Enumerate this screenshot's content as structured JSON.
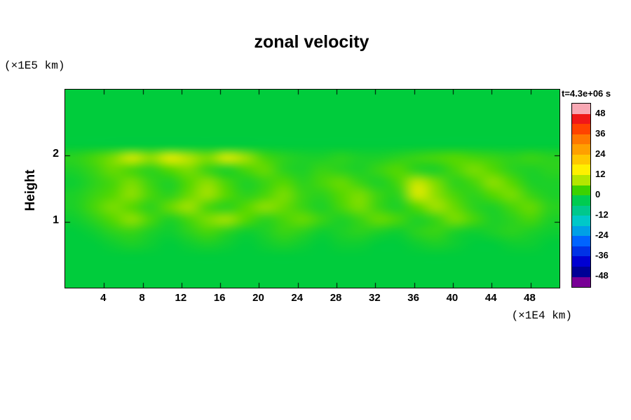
{
  "title": "zonal velocity",
  "axes": {
    "y_label": "Height",
    "y_unit": "(×1E5 km)",
    "x_unit": "(×1E4 km)"
  },
  "colorbar": {
    "title": "t=4.3e+06 s",
    "tick_labels": [
      "48",
      "36",
      "24",
      "12",
      "0",
      "-12",
      "-24",
      "-36",
      "-48"
    ],
    "segments_top_to_bottom": [
      "#f8a8b4",
      "#f01818",
      "#ff4300",
      "#ff7800",
      "#ffa000",
      "#ffc800",
      "#fff000",
      "#b4e600",
      "#3cd200",
      "#00cc50",
      "#00c88c",
      "#00c8c8",
      "#00a0e6",
      "#0064ff",
      "#0032e6",
      "#0000d2",
      "#000096",
      "#780096"
    ]
  },
  "chart_data": {
    "type": "heatmap",
    "title": "zonal velocity",
    "xlabel": "(×1E4 km)",
    "ylabel": "Height (×1E5 km)",
    "time_label": "t=4.3e+06 s",
    "x_range": [
      0,
      51
    ],
    "y_range": [
      0,
      3
    ],
    "x_ticks": [
      4,
      8,
      12,
      16,
      20,
      24,
      28,
      32,
      36,
      40,
      44,
      48
    ],
    "y_ticks": [
      1,
      2
    ],
    "colorbar_ticks": [
      48,
      36,
      24,
      12,
      0,
      -12,
      -24,
      -36,
      -48
    ],
    "value_range": [
      -54,
      54
    ],
    "x_values": [
      0,
      2,
      4,
      6,
      8,
      10,
      12,
      14,
      16,
      18,
      20,
      22,
      24,
      26,
      28,
      30,
      32,
      34,
      36,
      38,
      40,
      42,
      44,
      46,
      48,
      50
    ],
    "y_values": [
      3.0,
      2.8,
      2.6,
      2.4,
      2.2,
      2.0,
      1.8,
      1.6,
      1.4,
      1.2,
      1.0,
      0.8,
      0.6,
      0.4,
      0.2,
      0.0
    ],
    "values": [
      [
        0,
        0,
        0,
        0,
        0,
        0,
        0,
        0,
        0,
        0,
        0,
        0,
        0,
        0,
        0,
        0,
        0,
        0,
        0,
        0,
        0,
        0,
        0,
        0,
        0,
        0
      ],
      [
        0,
        0,
        0,
        0,
        0,
        0,
        0,
        0,
        0,
        0,
        0,
        0,
        0,
        0,
        0,
        0,
        0,
        0,
        0,
        0,
        0,
        0,
        0,
        0,
        0,
        0
      ],
      [
        0,
        0,
        0,
        0,
        0,
        0,
        0,
        0,
        0,
        0,
        0,
        0,
        0,
        0,
        0,
        0,
        0,
        0,
        0,
        0,
        0,
        0,
        0,
        0,
        0,
        0
      ],
      [
        0,
        0,
        0,
        0,
        0,
        0,
        0,
        0,
        0,
        0,
        0,
        0,
        0,
        0,
        0,
        0,
        0,
        0,
        0,
        0,
        0,
        0,
        0,
        0,
        0,
        0
      ],
      [
        0,
        0,
        0,
        0,
        0,
        0,
        0,
        0,
        0,
        0,
        0,
        0,
        0,
        0,
        0,
        0,
        0,
        0,
        0,
        0,
        0,
        0,
        0,
        0,
        0,
        0
      ],
      [
        3,
        5,
        8,
        13,
        9,
        15,
        11,
        8,
        14,
        10,
        5,
        3,
        2,
        2,
        3,
        2,
        2,
        3,
        4,
        5,
        6,
        5,
        4,
        3,
        4,
        3
      ],
      [
        2,
        4,
        7,
        5,
        3,
        6,
        8,
        4,
        2,
        5,
        7,
        3,
        2,
        4,
        3,
        2,
        4,
        6,
        3,
        2,
        5,
        8,
        6,
        3,
        2,
        3
      ],
      [
        1,
        3,
        5,
        8,
        4,
        2,
        6,
        9,
        5,
        2,
        4,
        6,
        3,
        5,
        7,
        4,
        2,
        5,
        12,
        8,
        3,
        5,
        9,
        6,
        2,
        2
      ],
      [
        2,
        4,
        6,
        9,
        5,
        3,
        7,
        10,
        6,
        3,
        5,
        8,
        4,
        3,
        6,
        8,
        4,
        3,
        14,
        9,
        5,
        3,
        6,
        8,
        4,
        2
      ],
      [
        2,
        5,
        8,
        6,
        3,
        7,
        10,
        5,
        3,
        6,
        9,
        7,
        4,
        2,
        5,
        8,
        4,
        2,
        6,
        10,
        7,
        3,
        2,
        5,
        7,
        3
      ],
      [
        1,
        3,
        6,
        9,
        5,
        2,
        5,
        8,
        10,
        6,
        3,
        5,
        7,
        4,
        2,
        4,
        7,
        5,
        2,
        4,
        8,
        5,
        2,
        3,
        5,
        2
      ],
      [
        0,
        1,
        3,
        4,
        2,
        1,
        3,
        5,
        3,
        1,
        2,
        4,
        3,
        1,
        2,
        3,
        2,
        1,
        3,
        4,
        2,
        1,
        2,
        3,
        2,
        1
      ],
      [
        0,
        0,
        1,
        2,
        1,
        0,
        1,
        2,
        1,
        0,
        1,
        2,
        1,
        0,
        1,
        1,
        0,
        0,
        1,
        2,
        1,
        0,
        0,
        1,
        1,
        0
      ],
      [
        0,
        0,
        0,
        0,
        0,
        0,
        0,
        0,
        0,
        0,
        0,
        0,
        0,
        0,
        0,
        0,
        0,
        0,
        0,
        0,
        0,
        0,
        0,
        0,
        0,
        0
      ],
      [
        0,
        0,
        0,
        0,
        0,
        0,
        0,
        0,
        0,
        0,
        0,
        0,
        0,
        0,
        0,
        0,
        0,
        0,
        0,
        0,
        0,
        0,
        0,
        0,
        0,
        0
      ],
      [
        0,
        0,
        0,
        0,
        0,
        0,
        0,
        0,
        0,
        0,
        0,
        0,
        0,
        0,
        0,
        0,
        0,
        0,
        0,
        0,
        0,
        0,
        0,
        0,
        0,
        0
      ]
    ],
    "colormap_stops": [
      [
        -54,
        "#780096"
      ],
      [
        -42,
        "#0000a0"
      ],
      [
        -30,
        "#0050ff"
      ],
      [
        -18,
        "#00b4dc"
      ],
      [
        -12,
        "#00c88c"
      ],
      [
        -6,
        "#00cc50"
      ],
      [
        0,
        "#00cc3c"
      ],
      [
        6,
        "#55d800"
      ],
      [
        12,
        "#c8e600"
      ],
      [
        18,
        "#fff000"
      ],
      [
        24,
        "#ffc800"
      ],
      [
        33,
        "#ff7800"
      ],
      [
        42,
        "#f01818"
      ],
      [
        48,
        "#f4888c"
      ],
      [
        54,
        "#f8a8b4"
      ]
    ]
  }
}
